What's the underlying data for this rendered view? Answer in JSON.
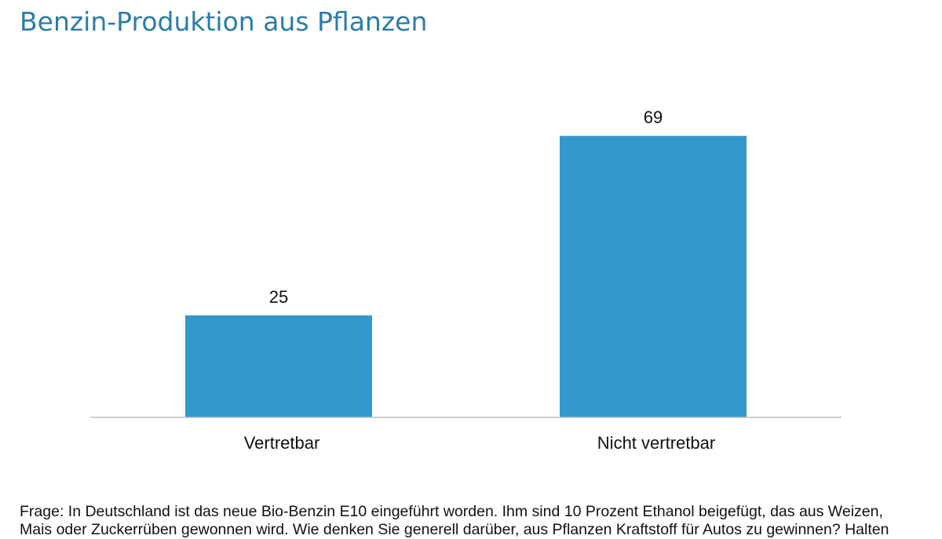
{
  "header": {
    "title": "Benzin-Produktion aus Pflanzen"
  },
  "colors": {
    "bar": "#3399cc",
    "title": "#2b7da5",
    "baseline": "#bfbfbf",
    "text": "#111111"
  },
  "chart_data": {
    "type": "bar",
    "title": "Benzin-Produktion aus Pflanzen",
    "categories": [
      "Vertretbar",
      "Nicht vertretbar"
    ],
    "values": [
      25,
      69
    ],
    "data_labels": [
      "25",
      "69"
    ],
    "xlabel": "",
    "ylabel": "",
    "ylim": [
      0,
      100
    ],
    "grid": false,
    "legend": "none"
  },
  "footnote": {
    "line1": "Frage: In Deutschland ist das neue Bio-Benzin E10 eingeführt worden. Ihm sind 10 Prozent Ethanol beigefügt, das aus Weizen,",
    "line2": "Mais oder Zuckerrüben gewonnen wird. Wie denken Sie generell darüber, aus Pflanzen Kraftstoff für Autos zu gewinnen? Halten"
  }
}
